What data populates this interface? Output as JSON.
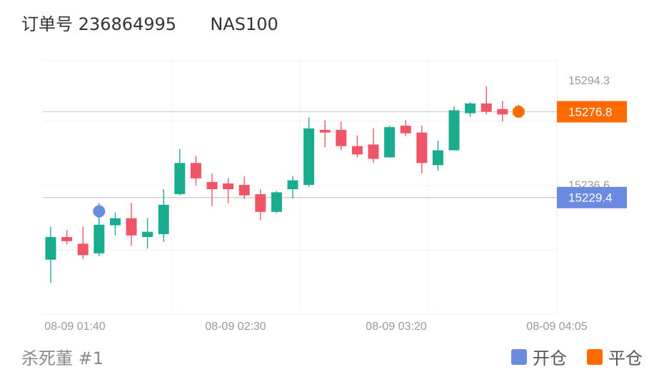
{
  "header": {
    "order_label": "订单号",
    "order_number": "236864995",
    "symbol": "NAS100"
  },
  "footer": {
    "title": "杀死董 #1"
  },
  "legend": {
    "open_label": "开仓",
    "close_label": "平仓",
    "open_color": "#6b8be3",
    "close_color": "#ff6a00"
  },
  "chart_data": {
    "type": "candlestick",
    "up_color": "#1aac8e",
    "down_color": "#ef5566",
    "x_ticks": [
      "08-09 01:40",
      "08-09 02:30",
      "08-09 03:20",
      "08-09 04:05"
    ],
    "y_ticks": [
      15294.3,
      15236.6
    ],
    "ylim": [
      15165,
      15305
    ],
    "candles": [
      {
        "t": "01:40",
        "o": 15195.1,
        "h": 15213.4,
        "l": 15182.4,
        "c": 15207.6
      },
      {
        "t": "01:45",
        "o": 15207.6,
        "h": 15211.4,
        "l": 15203.5,
        "c": 15205.3
      },
      {
        "t": "01:50",
        "o": 15203.9,
        "h": 15213.4,
        "l": 15195.5,
        "c": 15197.6
      },
      {
        "t": "01:55",
        "o": 15198.6,
        "h": 15226.3,
        "l": 15197.0,
        "c": 15214.4
      },
      {
        "t": "02:00",
        "o": 15214.1,
        "h": 15221.1,
        "l": 15208.5,
        "c": 15218.0
      },
      {
        "t": "02:05",
        "o": 15218.0,
        "h": 15226.3,
        "l": 15202.8,
        "c": 15208.5
      },
      {
        "t": "02:10",
        "o": 15207.6,
        "h": 15218.0,
        "l": 15201.2,
        "c": 15210.5
      },
      {
        "t": "02:15",
        "o": 15209.2,
        "h": 15234.0,
        "l": 15204.9,
        "c": 15225.4
      },
      {
        "t": "02:20",
        "o": 15231.3,
        "h": 15256.3,
        "l": 15230.6,
        "c": 15248.5
      },
      {
        "t": "02:25",
        "o": 15248.5,
        "h": 15252.4,
        "l": 15236.1,
        "c": 15240.0
      },
      {
        "t": "02:30",
        "o": 15238.0,
        "h": 15242.7,
        "l": 15224.6,
        "c": 15234.0
      },
      {
        "t": "02:35",
        "o": 15237.2,
        "h": 15240.0,
        "l": 15226.3,
        "c": 15234.0
      },
      {
        "t": "02:40",
        "o": 15236.4,
        "h": 15241.1,
        "l": 15228.7,
        "c": 15230.6
      },
      {
        "t": "02:45",
        "o": 15231.3,
        "h": 15234.0,
        "l": 15216.9,
        "c": 15221.5
      },
      {
        "t": "02:50",
        "o": 15221.5,
        "h": 15233.1,
        "l": 15220.8,
        "c": 15232.3
      },
      {
        "t": "02:55",
        "o": 15234.0,
        "h": 15241.1,
        "l": 15229.0,
        "c": 15238.9
      },
      {
        "t": "03:00",
        "o": 15236.4,
        "h": 15273.7,
        "l": 15235.3,
        "c": 15267.6
      },
      {
        "t": "03:05",
        "o": 15266.8,
        "h": 15272.1,
        "l": 15257.1,
        "c": 15265.3
      },
      {
        "t": "03:10",
        "o": 15266.8,
        "h": 15271.4,
        "l": 15255.5,
        "c": 15257.8
      },
      {
        "t": "03:15",
        "o": 15257.8,
        "h": 15263.7,
        "l": 15251.6,
        "c": 15253.2
      },
      {
        "t": "03:20",
        "o": 15258.7,
        "h": 15267.6,
        "l": 15248.5,
        "c": 15250.8
      },
      {
        "t": "03:25",
        "o": 15251.6,
        "h": 15269.1,
        "l": 15251.6,
        "c": 15268.3
      },
      {
        "t": "03:30",
        "o": 15269.1,
        "h": 15272.1,
        "l": 15263.4,
        "c": 15264.9
      },
      {
        "t": "03:35",
        "o": 15265.3,
        "h": 15269.1,
        "l": 15242.7,
        "c": 15248.5
      },
      {
        "t": "03:40",
        "o": 15247.3,
        "h": 15260.9,
        "l": 15244.3,
        "c": 15255.5
      },
      {
        "t": "03:45",
        "o": 15255.5,
        "h": 15279.8,
        "l": 15255.5,
        "c": 15277.6
      },
      {
        "t": "03:50",
        "o": 15276.0,
        "h": 15282.1,
        "l": 15274.1,
        "c": 15281.4
      },
      {
        "t": "03:55",
        "o": 15281.4,
        "h": 15290.8,
        "l": 15275.3,
        "c": 15276.8
      },
      {
        "t": "04:00",
        "o": 15278.3,
        "h": 15282.8,
        "l": 15271.4,
        "c": 15275.3
      },
      {
        "t": "04:05",
        "o": 15276.0,
        "h": 15280.6,
        "l": 15275.0,
        "c": 15276.8
      }
    ],
    "open_marker": {
      "t": "01:55",
      "price": 15229.4,
      "label": "15229.4"
    },
    "close_marker": {
      "t": "04:05",
      "price": 15276.8,
      "label": "15276.8"
    }
  }
}
